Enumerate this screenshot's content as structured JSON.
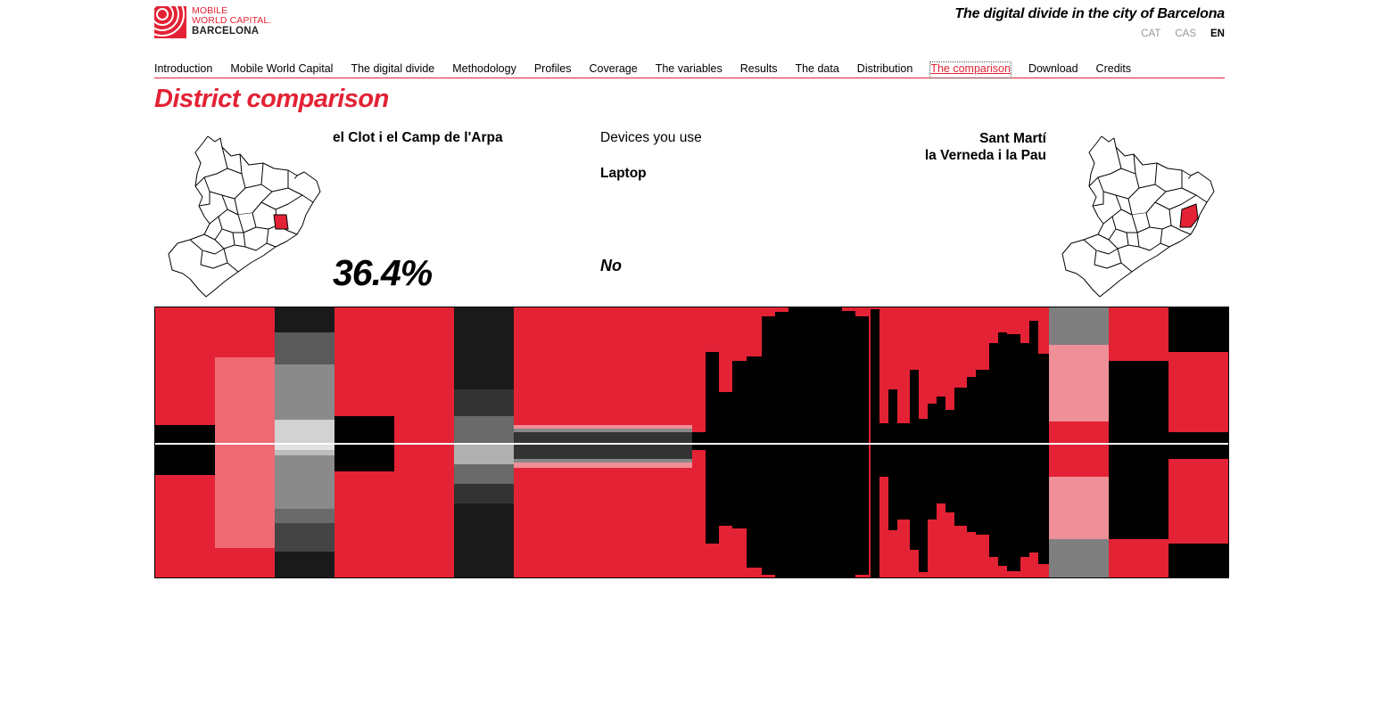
{
  "logo": {
    "line1": "MOBILE",
    "line2": "WORLD CAPITAL.",
    "line3": "BARCELONA"
  },
  "header": {
    "title": "The digital divide in the city of Barcelona",
    "languages": [
      {
        "label": "CAT",
        "active": false
      },
      {
        "label": "CAS",
        "active": false
      },
      {
        "label": "EN",
        "active": true
      }
    ]
  },
  "nav": {
    "items": [
      {
        "label": "Introduction",
        "active": false
      },
      {
        "label": "Mobile World Capital",
        "active": false
      },
      {
        "label": "The digital divide",
        "active": false
      },
      {
        "label": "Methodology",
        "active": false
      },
      {
        "label": "Profiles",
        "active": false
      },
      {
        "label": "Coverage",
        "active": false
      },
      {
        "label": "The variables",
        "active": false
      },
      {
        "label": "Results",
        "active": false
      },
      {
        "label": "The data",
        "active": false
      },
      {
        "label": "Distribution",
        "active": false
      },
      {
        "label": "The comparison",
        "active": true
      },
      {
        "label": "Download",
        "active": false
      },
      {
        "label": "Credits",
        "active": false
      }
    ]
  },
  "page": {
    "title": "District comparison"
  },
  "comparison": {
    "left_district": "el Clot i el Camp de l'Arpa",
    "right_district_line1": "Sant Martí",
    "right_district_line2": "la Verneda i la Pau",
    "variable": "Devices you use",
    "variable_option": "Laptop",
    "answer": "No",
    "percentage": "36.4%"
  },
  "colors": {
    "accent": "#e32235",
    "pink": "#ef8f97",
    "salmon": "#ee6a74",
    "black": "#000000",
    "dark": "#1a1a1a",
    "grey": "#7f7f7f"
  }
}
